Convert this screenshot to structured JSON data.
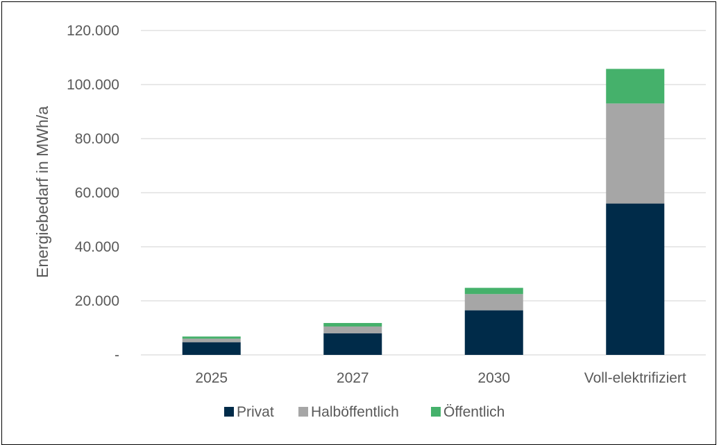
{
  "chart_data": {
    "type": "bar",
    "stacked": true,
    "categories": [
      "2025",
      "2027",
      "2030",
      "Voll-elektrifiziert"
    ],
    "series": [
      {
        "name": "Privat",
        "color": "#002b49",
        "values": [
          4700,
          8000,
          16500,
          56000
        ]
      },
      {
        "name": "Halböffentlich",
        "color": "#a6a6a6",
        "values": [
          1300,
          2500,
          6000,
          37000
        ]
      },
      {
        "name": "Öffentlich",
        "color": "#45b16b",
        "values": [
          800,
          1300,
          2300,
          12800
        ]
      }
    ],
    "ylabel": "Energiebedarf in MWh/a",
    "ylim": [
      0,
      120000
    ],
    "yticks": [
      0,
      20000,
      40000,
      60000,
      80000,
      100000,
      120000
    ],
    "ytick_labels": [
      "-",
      "20.000",
      "40.000",
      "60.000",
      "80.000",
      "100.000",
      "120.000"
    ],
    "grid": true,
    "legend_position": "bottom"
  }
}
